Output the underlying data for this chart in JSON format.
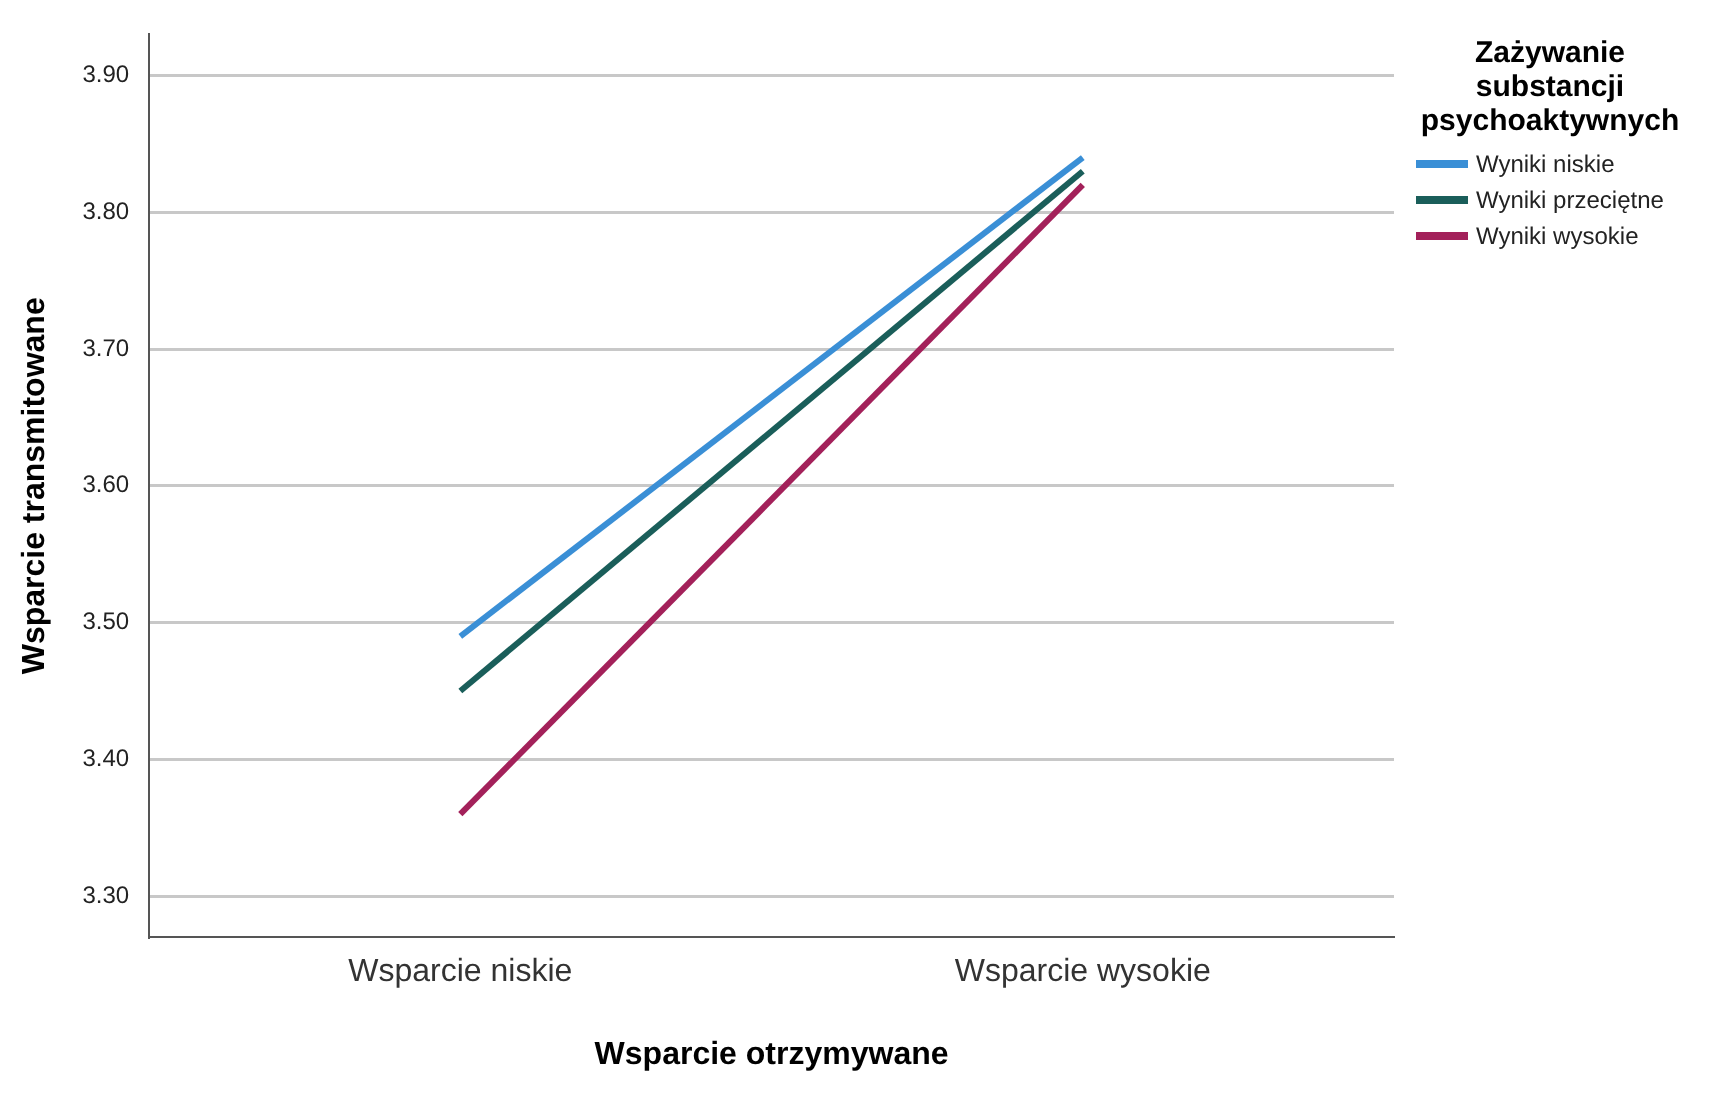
{
  "chart_data": {
    "type": "line",
    "xlabel": "Wsparcie otrzymywane",
    "ylabel": "Wsparcie transmitowane",
    "legend_title": "Zażywanie substancji psychoaktywnych",
    "categories": [
      "Wsparcie niskie",
      "Wsparcie wysokie"
    ],
    "series": [
      {
        "name": "Wyniki niskie",
        "color": "#3a8fd6",
        "values": [
          3.49,
          3.84
        ]
      },
      {
        "name": "Wyniki przeciętne",
        "color": "#1a5e5a",
        "values": [
          3.45,
          3.83
        ]
      },
      {
        "name": "Wyniki wysokie",
        "color": "#a3215a",
        "values": [
          3.36,
          3.82
        ]
      }
    ],
    "ylim": [
      3.27,
      3.93
    ],
    "yticks": [
      {
        "value": 3.3,
        "label": "3.30"
      },
      {
        "value": 3.4,
        "label": "3.40"
      },
      {
        "value": 3.5,
        "label": "3.50"
      },
      {
        "value": 3.6,
        "label": "3.60"
      },
      {
        "value": 3.7,
        "label": "3.70"
      },
      {
        "value": 3.8,
        "label": "3.80"
      },
      {
        "value": 3.9,
        "label": "3.90"
      }
    ],
    "grid": "y",
    "legend": "top right",
    "marker": "none",
    "line_style": "solid"
  }
}
